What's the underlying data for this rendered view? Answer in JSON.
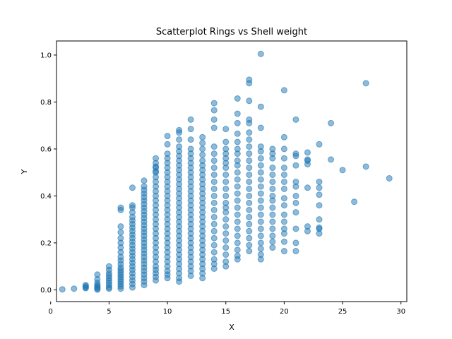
{
  "chart_data": {
    "type": "scatter",
    "title": "Scatterplot Rings vs Shell weight",
    "xlabel": "X",
    "ylabel": "Y",
    "xlim": [
      0.5,
      30.5
    ],
    "ylim": [
      -0.05,
      1.06
    ],
    "xticks": [
      0,
      5,
      10,
      15,
      20,
      25,
      30
    ],
    "yticks": [
      0.0,
      0.2,
      0.4,
      0.6,
      0.8,
      1.0
    ],
    "xtick_labels": [
      "0",
      "5",
      "10",
      "15",
      "20",
      "25",
      "30"
    ],
    "ytick_labels": [
      "0.0",
      "0.2",
      "0.4",
      "0.6",
      "0.8",
      "1.0"
    ],
    "grid": false,
    "marker_color": "#1f77b4",
    "marker_alpha": 0.5,
    "x": [
      1,
      2,
      3,
      3,
      3,
      3,
      4,
      4,
      4,
      4,
      4,
      4,
      4,
      4,
      5,
      5,
      5,
      5,
      5,
      5,
      5,
      5,
      5,
      5,
      6,
      6,
      6,
      6,
      6,
      6,
      6,
      6,
      6,
      6,
      6,
      6,
      6,
      6,
      6,
      6,
      6,
      6,
      6,
      6,
      6,
      7,
      7,
      7,
      7,
      7,
      7,
      7,
      7,
      7,
      7,
      7,
      7,
      7,
      7,
      7,
      7,
      7,
      7,
      7,
      7,
      7,
      7,
      7,
      7,
      7,
      8,
      8,
      8,
      8,
      8,
      8,
      8,
      8,
      8,
      8,
      8,
      8,
      8,
      8,
      8,
      8,
      8,
      8,
      8,
      8,
      8,
      8,
      8,
      8,
      8,
      8,
      8,
      8,
      8,
      8,
      9,
      9,
      9,
      9,
      9,
      9,
      9,
      9,
      9,
      9,
      9,
      9,
      9,
      9,
      9,
      9,
      9,
      9,
      9,
      9,
      9,
      9,
      9,
      9,
      9,
      9,
      9,
      9,
      9,
      9,
      10,
      10,
      10,
      10,
      10,
      10,
      10,
      10,
      10,
      10,
      10,
      10,
      10,
      10,
      10,
      10,
      10,
      10,
      10,
      10,
      10,
      10,
      10,
      10,
      10,
      10,
      10,
      10,
      10,
      10,
      11,
      11,
      11,
      11,
      11,
      11,
      11,
      11,
      11,
      11,
      11,
      11,
      11,
      11,
      11,
      11,
      11,
      11,
      11,
      11,
      11,
      11,
      11,
      11,
      11,
      11,
      11,
      11,
      11,
      11,
      11,
      11,
      11,
      12,
      12,
      12,
      12,
      12,
      12,
      12,
      12,
      12,
      12,
      12,
      12,
      12,
      12,
      12,
      12,
      12,
      12,
      12,
      12,
      12,
      12,
      12,
      12,
      12,
      12,
      12,
      12,
      12,
      12,
      12,
      13,
      13,
      13,
      13,
      13,
      13,
      13,
      13,
      13,
      13,
      13,
      13,
      13,
      13,
      13,
      13,
      13,
      13,
      13,
      13,
      13,
      13,
      13,
      13,
      13,
      13,
      13,
      13,
      13,
      13,
      14,
      14,
      14,
      14,
      14,
      14,
      14,
      14,
      14,
      14,
      14,
      14,
      14,
      14,
      14,
      14,
      14,
      14,
      14,
      14,
      14,
      14,
      14,
      15,
      15,
      15,
      15,
      15,
      15,
      15,
      15,
      15,
      15,
      15,
      15,
      15,
      15,
      15,
      15,
      15,
      15,
      15,
      15,
      15,
      15,
      16,
      16,
      16,
      16,
      16,
      16,
      16,
      16,
      16,
      16,
      16,
      16,
      16,
      16,
      16,
      16,
      16,
      16,
      16,
      16,
      16,
      16,
      16,
      17,
      17,
      17,
      17,
      17,
      17,
      17,
      17,
      17,
      17,
      17,
      17,
      17,
      17,
      17,
      17,
      17,
      17,
      17,
      17,
      17,
      17,
      17,
      18,
      18,
      18,
      18,
      18,
      18,
      18,
      18,
      18,
      18,
      18,
      18,
      18,
      18,
      18,
      18,
      18,
      18,
      18,
      18,
      18,
      19,
      19,
      19,
      19,
      19,
      19,
      19,
      19,
      19,
      19,
      19,
      19,
      19,
      19,
      19,
      19,
      20,
      20,
      20,
      20,
      20,
      20,
      20,
      20,
      20,
      20,
      20,
      20,
      20,
      20,
      20,
      20,
      21,
      21,
      21,
      21,
      21,
      21,
      21,
      21,
      21,
      21,
      21,
      21,
      22,
      22,
      22,
      22,
      22,
      22,
      22,
      23,
      23,
      23,
      23,
      23,
      23,
      23,
      23,
      23,
      24,
      24,
      25,
      26,
      27,
      27,
      29
    ],
    "y": [
      0.002,
      0.005,
      0.007,
      0.01,
      0.015,
      0.02,
      0.001,
      0.005,
      0.01,
      0.015,
      0.02,
      0.03,
      0.045,
      0.065,
      0.005,
      0.01,
      0.02,
      0.03,
      0.04,
      0.05,
      0.06,
      0.07,
      0.085,
      0.1,
      0.005,
      0.015,
      0.025,
      0.035,
      0.045,
      0.055,
      0.065,
      0.075,
      0.085,
      0.095,
      0.11,
      0.125,
      0.14,
      0.16,
      0.18,
      0.2,
      0.22,
      0.245,
      0.27,
      0.34,
      0.35,
      0.01,
      0.025,
      0.04,
      0.055,
      0.07,
      0.085,
      0.1,
      0.115,
      0.13,
      0.145,
      0.16,
      0.175,
      0.19,
      0.205,
      0.22,
      0.235,
      0.25,
      0.265,
      0.28,
      0.295,
      0.31,
      0.33,
      0.35,
      0.36,
      0.435,
      0.02,
      0.035,
      0.05,
      0.065,
      0.08,
      0.095,
      0.11,
      0.125,
      0.14,
      0.155,
      0.17,
      0.185,
      0.2,
      0.215,
      0.23,
      0.245,
      0.26,
      0.275,
      0.29,
      0.305,
      0.32,
      0.335,
      0.35,
      0.365,
      0.38,
      0.395,
      0.41,
      0.425,
      0.44,
      0.465,
      0.04,
      0.055,
      0.07,
      0.085,
      0.1,
      0.12,
      0.14,
      0.16,
      0.18,
      0.2,
      0.22,
      0.24,
      0.26,
      0.28,
      0.3,
      0.32,
      0.34,
      0.36,
      0.38,
      0.4,
      0.42,
      0.44,
      0.46,
      0.48,
      0.5,
      0.52,
      0.54,
      0.56,
      0.505,
      0.525,
      0.05,
      0.065,
      0.08,
      0.1,
      0.12,
      0.14,
      0.16,
      0.18,
      0.2,
      0.22,
      0.24,
      0.26,
      0.28,
      0.3,
      0.32,
      0.34,
      0.36,
      0.38,
      0.4,
      0.42,
      0.44,
      0.46,
      0.48,
      0.5,
      0.52,
      0.54,
      0.56,
      0.58,
      0.62,
      0.655,
      0.035,
      0.05,
      0.07,
      0.09,
      0.11,
      0.13,
      0.15,
      0.17,
      0.19,
      0.21,
      0.23,
      0.25,
      0.27,
      0.29,
      0.31,
      0.33,
      0.35,
      0.37,
      0.39,
      0.41,
      0.43,
      0.45,
      0.47,
      0.49,
      0.51,
      0.53,
      0.55,
      0.57,
      0.59,
      0.61,
      0.64,
      0.67,
      0.68,
      0.06,
      0.08,
      0.1,
      0.12,
      0.14,
      0.16,
      0.18,
      0.2,
      0.22,
      0.24,
      0.26,
      0.28,
      0.3,
      0.32,
      0.34,
      0.36,
      0.38,
      0.4,
      0.42,
      0.44,
      0.46,
      0.48,
      0.5,
      0.52,
      0.54,
      0.56,
      0.58,
      0.6,
      0.64,
      0.685,
      0.725,
      0.05,
      0.07,
      0.09,
      0.11,
      0.13,
      0.15,
      0.17,
      0.19,
      0.21,
      0.23,
      0.25,
      0.27,
      0.29,
      0.31,
      0.33,
      0.35,
      0.37,
      0.39,
      0.41,
      0.43,
      0.45,
      0.47,
      0.49,
      0.51,
      0.53,
      0.55,
      0.575,
      0.6,
      0.625,
      0.65,
      0.09,
      0.11,
      0.13,
      0.16,
      0.19,
      0.22,
      0.25,
      0.28,
      0.31,
      0.34,
      0.37,
      0.4,
      0.43,
      0.46,
      0.49,
      0.52,
      0.55,
      0.58,
      0.61,
      0.69,
      0.725,
      0.765,
      0.795,
      0.1,
      0.12,
      0.15,
      0.18,
      0.21,
      0.24,
      0.27,
      0.3,
      0.33,
      0.35,
      0.37,
      0.4,
      0.43,
      0.46,
      0.49,
      0.52,
      0.54,
      0.56,
      0.58,
      0.6,
      0.63,
      0.685,
      0.13,
      0.145,
      0.17,
      0.2,
      0.23,
      0.26,
      0.29,
      0.32,
      0.35,
      0.38,
      0.41,
      0.44,
      0.47,
      0.5,
      0.53,
      0.55,
      0.58,
      0.6,
      0.63,
      0.665,
      0.71,
      0.75,
      0.815,
      0.165,
      0.19,
      0.22,
      0.25,
      0.28,
      0.31,
      0.34,
      0.37,
      0.4,
      0.43,
      0.46,
      0.49,
      0.52,
      0.55,
      0.58,
      0.61,
      0.64,
      0.67,
      0.71,
      0.725,
      0.805,
      0.88,
      0.895,
      0.13,
      0.15,
      0.175,
      0.2,
      0.23,
      0.26,
      0.29,
      0.32,
      0.35,
      0.38,
      0.41,
      0.44,
      0.47,
      0.5,
      0.53,
      0.56,
      0.59,
      0.61,
      0.69,
      0.78,
      1.005,
      0.18,
      0.205,
      0.23,
      0.26,
      0.29,
      0.32,
      0.35,
      0.38,
      0.4,
      0.43,
      0.46,
      0.49,
      0.52,
      0.56,
      0.58,
      0.6,
      0.165,
      0.205,
      0.24,
      0.26,
      0.29,
      0.32,
      0.36,
      0.39,
      0.43,
      0.46,
      0.49,
      0.52,
      0.56,
      0.6,
      0.65,
      0.85,
      0.165,
      0.2,
      0.26,
      0.33,
      0.37,
      0.4,
      0.44,
      0.46,
      0.53,
      0.57,
      0.58,
      0.725,
      0.25,
      0.27,
      0.435,
      0.535,
      0.55,
      0.585,
      0.555,
      0.24,
      0.265,
      0.26,
      0.3,
      0.36,
      0.405,
      0.435,
      0.46,
      0.62,
      0.555,
      0.71,
      0.51,
      0.375,
      0.525,
      0.88,
      0.475
    ]
  }
}
